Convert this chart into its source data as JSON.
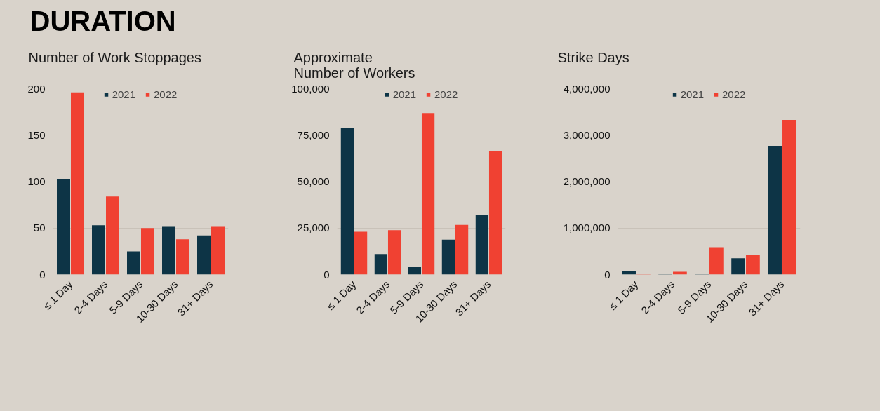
{
  "chart_data": [
    {
      "type": "bar",
      "title": "DURATION",
      "subtitle": "Number of Work Stoppages",
      "categories": [
        "≤ 1 Day",
        "2-4 Days",
        "5-9 Days",
        "10-30 Days",
        "31+ Days"
      ],
      "series": [
        {
          "name": "2021",
          "color": "#0d3446",
          "values": [
            103,
            53,
            25,
            52,
            42
          ]
        },
        {
          "name": "2022",
          "color": "#f04132",
          "values": [
            196,
            84,
            50,
            38,
            52
          ]
        }
      ],
      "ylim": [
        0,
        200
      ],
      "yticks": [
        0,
        50,
        100,
        150,
        200
      ],
      "grid": "y",
      "legend": "top"
    },
    {
      "type": "bar",
      "subtitle": "Approximate\nNumber of Workers",
      "categories": [
        "≤ 1 Day",
        "2-4 Days",
        "5-9 Days",
        "10-30 Days",
        "31+ Days"
      ],
      "series": [
        {
          "name": "2021",
          "color": "#0d3446",
          "values": [
            79000,
            11000,
            4000,
            18800,
            31900
          ]
        },
        {
          "name": "2022",
          "color": "#f04132",
          "values": [
            23000,
            23900,
            86900,
            26700,
            66200
          ]
        }
      ],
      "ylim": [
        0,
        100000
      ],
      "yticks": [
        0,
        {
          "value": 25000,
          "label": "25,000"
        },
        {
          "value": 50000,
          "label": "50,000"
        },
        {
          "value": 75000,
          "label": "75,000"
        },
        {
          "value": 100000,
          "label": "100,000"
        }
      ],
      "grid": "y",
      "legend": "top"
    },
    {
      "type": "bar",
      "subtitle": "Strike Days",
      "categories": [
        "≤ 1 Day",
        "2-4 Days",
        "5-9 Days",
        "10-30 Days",
        "31+ Days"
      ],
      "series": [
        {
          "name": "2021",
          "color": "#0d3446",
          "values": [
            80000,
            20000,
            20000,
            350000,
            2770000
          ]
        },
        {
          "name": "2022",
          "color": "#f04132",
          "values": [
            20000,
            60000,
            590000,
            420000,
            3330000
          ]
        }
      ],
      "ylim": [
        0,
        4000000
      ],
      "yticks": [
        0,
        {
          "value": 1000000,
          "label": "1,000,000"
        },
        {
          "value": 2000000,
          "label": "2,000,000"
        },
        {
          "value": 3000000,
          "label": "3,000,000"
        },
        {
          "value": 4000000,
          "label": "4,000,000"
        }
      ],
      "grid": "y",
      "legend": "top"
    }
  ]
}
